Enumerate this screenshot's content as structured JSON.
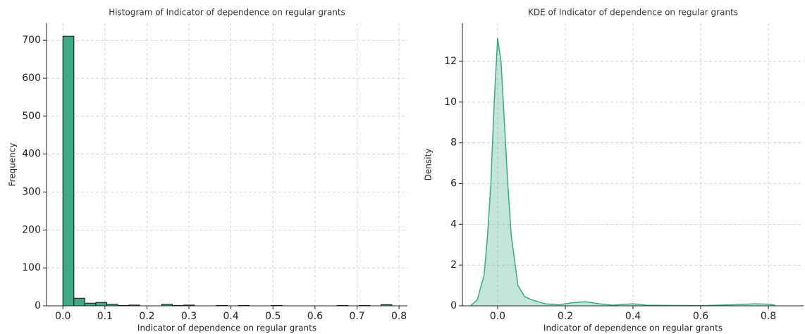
{
  "chart_data": [
    {
      "type": "histogram",
      "title": "Histogram of Indicator of dependence on regular grants",
      "x_label": "Indicator of dependence on regular grants",
      "y_label": "Frequency",
      "bins": [
        0,
        0.0261,
        0.0522,
        0.0783,
        0.1044,
        0.1305,
        0.1566,
        0.1827,
        0.2088,
        0.2349,
        0.261,
        0.2871,
        0.3132,
        0.3393,
        0.3654,
        0.3915,
        0.4176,
        0.4437,
        0.4698,
        0.4959,
        0.522,
        0.5481,
        0.5742,
        0.6003,
        0.6264,
        0.6525,
        0.6786,
        0.7047,
        0.7308,
        0.7569,
        0.783
      ],
      "values": [
        711,
        20,
        7,
        9,
        4,
        1,
        2,
        0,
        0,
        4,
        1,
        2,
        0,
        0,
        1,
        0,
        1,
        0,
        0,
        1,
        0,
        0,
        0,
        0,
        0,
        1,
        0,
        1,
        0,
        3
      ],
      "color": "#3fa886",
      "edge_color": "#111111",
      "xlim": [
        -0.039,
        0.82
      ],
      "ylim": [
        0,
        745
      ],
      "xticks": [
        {
          "value": 0,
          "label": "0.0"
        },
        0.1,
        0.2,
        0.3,
        0.4,
        0.5,
        0.6,
        0.7,
        0.8
      ],
      "yticks": [
        0,
        100,
        200,
        300,
        400,
        500,
        600,
        700
      ],
      "grid": true
    },
    {
      "type": "kde",
      "title": "KDE of Indicator of dependence on regular grants",
      "x_label": "Indicator of dependence on regular grants",
      "y_label": "Density",
      "x": [
        -0.08,
        -0.06,
        -0.04,
        -0.03,
        -0.02,
        -0.01,
        0,
        0.01,
        0.02,
        0.03,
        0.04,
        0.06,
        0.08,
        0.1,
        0.14,
        0.18,
        0.22,
        0.26,
        0.3,
        0.34,
        0.4,
        0.44,
        0.5,
        0.6,
        0.7,
        0.76,
        0.8,
        0.82
      ],
      "y": [
        0,
        0.3,
        1.5,
        3.4,
        6,
        10,
        13.15,
        12,
        9,
        6,
        3.5,
        1.0,
        0.45,
        0.3,
        0.1,
        0.05,
        0.15,
        0.2,
        0.1,
        0.03,
        0.1,
        0.03,
        0.02,
        0.01,
        0.05,
        0.1,
        0.08,
        0.03
      ],
      "color": "#3aaa85",
      "fill_opacity": 0.3,
      "xlim": [
        -0.104,
        0.904
      ],
      "ylim": [
        0,
        13.87
      ],
      "xticks": [
        {
          "value": 0,
          "label": "0.0"
        },
        0.2,
        0.4,
        0.6,
        0.8
      ],
      "yticks": [
        0,
        2,
        4,
        6,
        8,
        10,
        12
      ],
      "grid": true
    }
  ]
}
